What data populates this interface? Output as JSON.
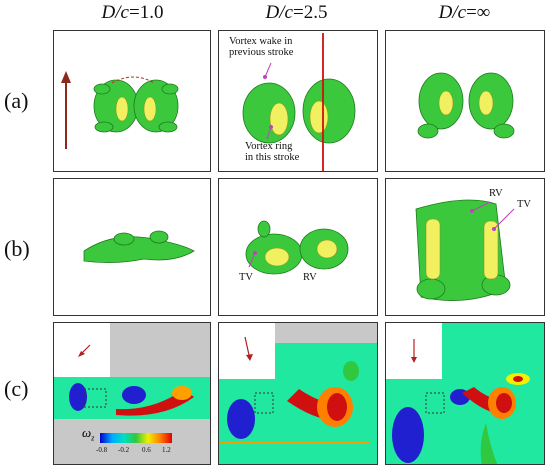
{
  "columns": [
    {
      "prefix": "D/c",
      "value": "=1.0"
    },
    {
      "prefix": "D/c",
      "value": "=2.5"
    },
    {
      "prefix": "D/c",
      "value": "=∞"
    }
  ],
  "rows": [
    "(a)",
    "(b)",
    "(c)"
  ],
  "annotations": {
    "wake": [
      "Vortex wake in",
      "previous stroke"
    ],
    "ring": [
      "Vortex ring",
      "in this stroke"
    ],
    "tv": "TV",
    "rv": "RV"
  },
  "colorbar": {
    "symbol": "ω",
    "subscript": "z",
    "ticks": [
      "-0.8",
      "-0.2",
      "0.6",
      "1.2"
    ],
    "colors": [
      "#0000c8",
      "#00aaff",
      "#00e0c0",
      "#30c840",
      "#f0f000",
      "#ff8000",
      "#e00000"
    ]
  },
  "colors": {
    "iso_green": "#3cc83c",
    "iso_yellow": "#f0f060",
    "arrow": "#8b2a1a",
    "red_line": "#d01010",
    "magenta": "#c040c0",
    "field_green": "#20e8a0"
  }
}
